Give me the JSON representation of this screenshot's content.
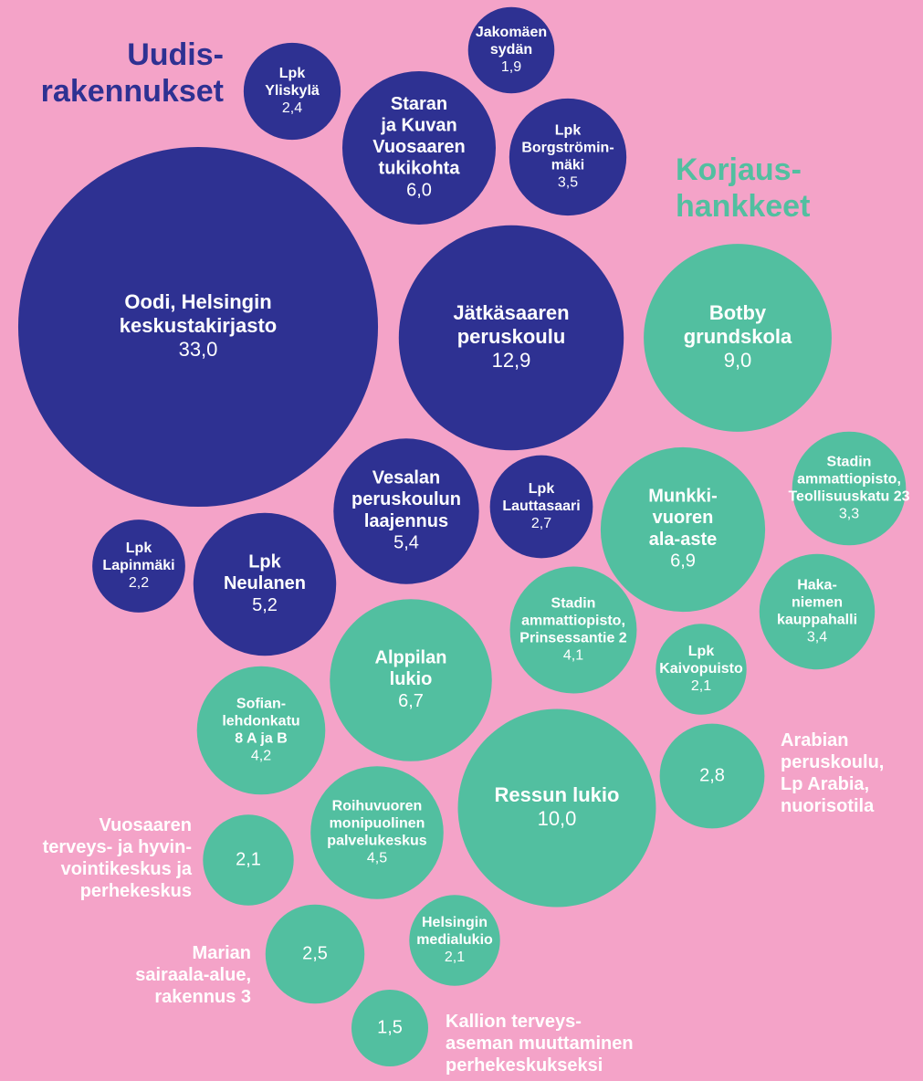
{
  "chart_data": {
    "type": "bubble",
    "series": [
      {
        "name": "Uudis-\nrakennukset",
        "color": "#2e3192",
        "labels": [
          "Oodi, Helsingin\nkeskustakirjasto",
          "Jätkäsaaren\nperuskoulu",
          "Staran\nja Kuvan\nVuosaaren\ntukikohta",
          "Lpk\nYliskylä",
          "Jakomäen\nsydän",
          "Lpk\nBorgströmin-\nmäki",
          "Vesalan\nperuskoulun\nlaajennus",
          "Lpk\nLauttasaari",
          "Lpk\nLapinmäki",
          "Lpk\nNeulanen"
        ],
        "values": [
          33.0,
          12.9,
          6.0,
          2.4,
          1.9,
          3.5,
          5.4,
          2.7,
          2.2,
          5.2
        ],
        "value_labels": [
          "33,0",
          "12,9",
          "6,0",
          "2,4",
          "1,9",
          "3,5",
          "5,4",
          "2,7",
          "2,2",
          "5,2"
        ]
      },
      {
        "name": "Korjaus-\nhankkeet",
        "color": "#52bfa0",
        "labels": [
          "Botby\ngrundskola",
          "Munkki-\nvuoren\nala-aste",
          "Stadin\nammattiopisto,\nTeollisuuskatu 23",
          "Haka-\nniemen\nkauppahalli",
          "Stadin\nammattiopisto,\nPrinsessantie 2",
          "Lpk\nKaivopuisto",
          "Alppilan\nlukio",
          "Sofian-\nlehdonkatu\n8 A ja B",
          "Arabian\nperuskoulu,\nLp Arabia,\nnuorisotila",
          "Ressun lukio",
          "Roihuvuoren\nmonipuolinen\npalvelukeskus",
          "Vuosaaren\nterveys- ja hyvin-\nvointikeskus ja\nperhekeskus",
          "Helsingin\nmedialukio",
          "Marian\nsairaala-alue,\nrakennus 3",
          "Kallion terveys-\naseman muuttaminen\nperhekeskukseksi"
        ],
        "values": [
          9.0,
          6.9,
          3.3,
          3.4,
          4.1,
          2.1,
          6.7,
          4.2,
          2.8,
          10.0,
          4.5,
          2.1,
          2.1,
          2.5,
          1.5
        ],
        "value_labels": [
          "9,0",
          "6,9",
          "3,3",
          "3,4",
          "4,1",
          "2,1",
          "6,7",
          "4,2",
          "2,8",
          "10,0",
          "4,5",
          "2,1",
          "2,1",
          "2,5",
          "1,5"
        ]
      }
    ]
  }
}
